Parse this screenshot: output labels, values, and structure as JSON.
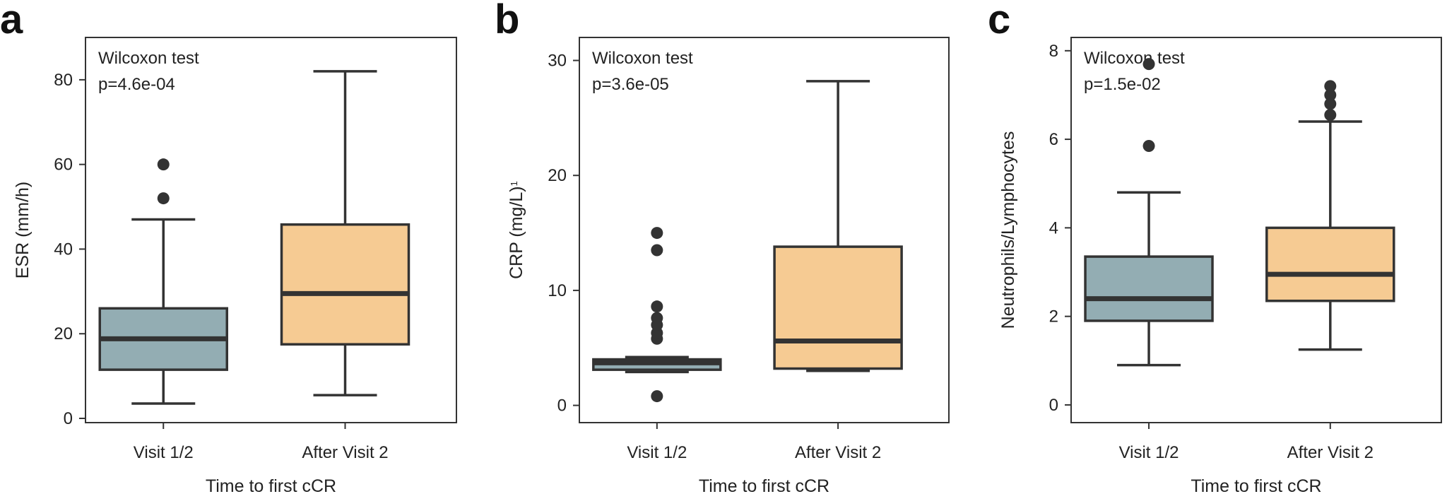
{
  "chart_data": [
    {
      "type": "box",
      "panel_label": "a",
      "ylabel": "ESR (mm/h)",
      "xlabel": "Time to first cCR",
      "categories": [
        "Visit 1/2",
        "After Visit 2"
      ],
      "ylim": [
        -1,
        90
      ],
      "yticks": [
        0,
        20,
        40,
        60,
        80
      ],
      "annotation": [
        "Wilcoxon test",
        "p=4.6e-04"
      ],
      "boxes": [
        {
          "category": "Visit 1/2",
          "whisker_low": 3.5,
          "q1": 11.5,
          "median": 18.8,
          "q3": 26,
          "whisker_high": 47,
          "outliers": [
            52,
            60
          ],
          "color": "#93adb3"
        },
        {
          "category": "After Visit 2",
          "whisker_low": 5.5,
          "q1": 17.5,
          "median": 29.5,
          "q3": 45.8,
          "whisker_high": 82,
          "outliers": [],
          "color": "#f6cb93"
        }
      ]
    },
    {
      "type": "box",
      "panel_label": "b",
      "ylabel": "CRP (mg/L)",
      "ylabel_superscript": "1",
      "xlabel": "Time to first cCR",
      "categories": [
        "Visit 1/2",
        "After Visit 2"
      ],
      "ylim": [
        -1.5,
        32
      ],
      "yticks": [
        0,
        10,
        20,
        30
      ],
      "annotation": [
        "Wilcoxon test",
        "p=3.6e-05"
      ],
      "boxes": [
        {
          "category": "Visit 1/2",
          "whisker_low": 2.9,
          "q1": 3.1,
          "median": 3.7,
          "q3": 4.0,
          "whisker_high": 4.2,
          "outliers": [
            0.8,
            5.8,
            6.3,
            7.0,
            7.6,
            8.6,
            13.5,
            15.0
          ],
          "color": "#93adb3"
        },
        {
          "category": "After Visit 2",
          "whisker_low": 3.0,
          "q1": 3.2,
          "median": 5.6,
          "q3": 13.8,
          "whisker_high": 28.2,
          "outliers": [],
          "color": "#f6cb93"
        }
      ]
    },
    {
      "type": "box",
      "panel_label": "c",
      "ylabel": "Neutrophils/Lymphocytes",
      "xlabel": "Time to first cCR",
      "categories": [
        "Visit 1/2",
        "After Visit 2"
      ],
      "ylim": [
        -0.4,
        8.3
      ],
      "yticks": [
        0,
        2,
        4,
        6,
        8
      ],
      "annotation": [
        "Wilcoxon test",
        "p=1.5e-02"
      ],
      "boxes": [
        {
          "category": "Visit 1/2",
          "whisker_low": 0.9,
          "q1": 1.9,
          "median": 2.4,
          "q3": 3.35,
          "whisker_high": 4.8,
          "outliers": [
            5.85,
            7.7
          ],
          "color": "#93adb3"
        },
        {
          "category": "After Visit 2",
          "whisker_low": 1.25,
          "q1": 2.35,
          "median": 2.95,
          "q3": 4.0,
          "whisker_high": 6.4,
          "outliers": [
            6.55,
            6.8,
            7.0,
            7.2
          ],
          "color": "#f6cb93"
        }
      ]
    }
  ]
}
